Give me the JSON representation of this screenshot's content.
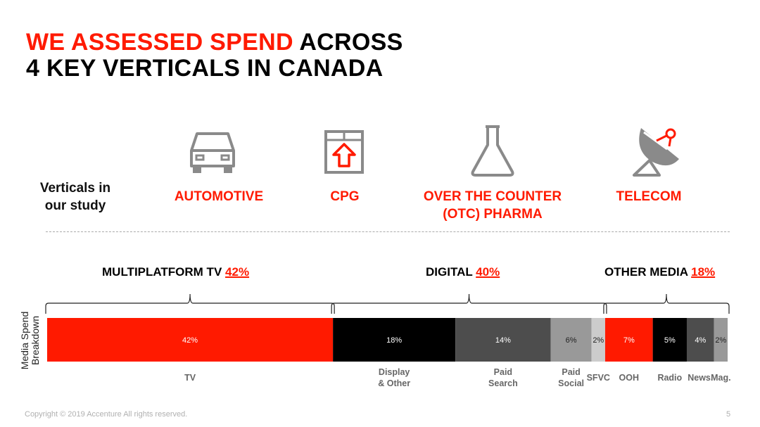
{
  "title": {
    "red_part": "WE ASSESSED SPEND",
    "black_part": " ACROSS",
    "line2": "4 KEY VERTICALS IN CANADA"
  },
  "verticals_label": "Verticals in our study",
  "verticals": [
    {
      "name": "AUTOMOTIVE",
      "icon": "car-icon"
    },
    {
      "name": "CPG",
      "icon": "box-arrow-icon"
    },
    {
      "name": "OVER THE COUNTER (OTC) PHARMA",
      "icon": "flask-icon"
    },
    {
      "name": "TELECOM",
      "icon": "satellite-dish-icon"
    }
  ],
  "categories": [
    {
      "label": "MULTIPLATFORM TV",
      "pct": "42%"
    },
    {
      "label": "DIGITAL",
      "pct": "40%"
    },
    {
      "label": "OTHER MEDIA",
      "pct": "18%"
    }
  ],
  "colors": {
    "accent": "#ff1a00",
    "black": "#000000",
    "dark_gray": "#4d4d4d",
    "mid_gray": "#999999",
    "light_gray": "#cccccc"
  },
  "chart_data": {
    "type": "bar",
    "orientation": "horizontal-stacked",
    "ylabel": "Media Spend Breakdown",
    "segments": [
      {
        "name": "TV",
        "value": 42,
        "label": "42%",
        "color": "#ff1a00",
        "group": "MULTIPLATFORM TV"
      },
      {
        "name": "Display & Other",
        "value": 18,
        "label": "18%",
        "color": "#000000",
        "group": "DIGITAL"
      },
      {
        "name": "Paid Search",
        "value": 14,
        "label": "14%",
        "color": "#4d4d4d",
        "group": "DIGITAL"
      },
      {
        "name": "Paid Social",
        "value": 6,
        "label": "6%",
        "color": "#999999",
        "group": "DIGITAL"
      },
      {
        "name": "SFVC",
        "value": 2,
        "label": "2%",
        "color": "#cccccc",
        "group": "DIGITAL"
      },
      {
        "name": "OOH",
        "value": 7,
        "label": "7%",
        "color": "#ff1a00",
        "group": "OTHER MEDIA"
      },
      {
        "name": "Radio",
        "value": 5,
        "label": "5%",
        "color": "#000000",
        "group": "OTHER MEDIA"
      },
      {
        "name": "News.",
        "value": 4,
        "label": "4%",
        "color": "#4d4d4d",
        "group": "OTHER MEDIA"
      },
      {
        "name": "Mag.",
        "value": 2,
        "label": "2%",
        "color": "#999999",
        "group": "OTHER MEDIA"
      }
    ]
  },
  "footer": "Copyright © 2019 Accenture All rights reserved.",
  "page_number": "5"
}
